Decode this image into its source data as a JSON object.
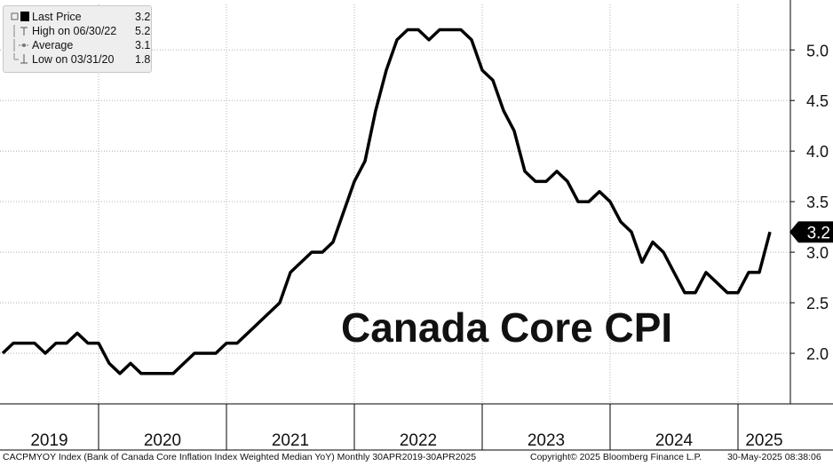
{
  "legend": {
    "last_price": {
      "label": "Last Price",
      "value": "3.2"
    },
    "high": {
      "label": "High on 06/30/22",
      "value": "5.2"
    },
    "average": {
      "label": "Average",
      "value": "3.1"
    },
    "low": {
      "label": "Low on 03/31/20",
      "value": "1.8"
    }
  },
  "annotation_title": "Canada Core CPI",
  "last_value_tag": "3.2",
  "footer": {
    "source": "CACPMYOY Index (Bank of Canada Core Inflation Index Weighted Median YoY)  Monthly 30APR2019-30APR2025",
    "copyright": "Copyright© 2025 Bloomberg Finance L.P.",
    "timestamp": "30-May-2025 08:38:06"
  },
  "colors": {
    "line": "#000000",
    "background": "#ffffff",
    "grid": "#b0b0b0",
    "legend_bg": "#eeeeee"
  },
  "chart_data": {
    "type": "line",
    "title": "Canada Core CPI",
    "xlabel": "",
    "ylabel": "",
    "ylim": [
      1.5,
      5.45
    ],
    "grid": true,
    "legend_placement": "top-left",
    "y_axis_position": "right",
    "y_ticks": [
      "2.0",
      "2.5",
      "3.0",
      "3.5",
      "4.0",
      "4.5",
      "5.0"
    ],
    "year_labels": [
      "2019",
      "2020",
      "2021",
      "2022",
      "2023",
      "2024",
      "2025"
    ],
    "x": [
      "2019-04",
      "2019-05",
      "2019-06",
      "2019-07",
      "2019-08",
      "2019-09",
      "2019-10",
      "2019-11",
      "2019-12",
      "2020-01",
      "2020-02",
      "2020-03",
      "2020-04",
      "2020-05",
      "2020-06",
      "2020-07",
      "2020-08",
      "2020-09",
      "2020-10",
      "2020-11",
      "2020-12",
      "2021-01",
      "2021-02",
      "2021-03",
      "2021-04",
      "2021-05",
      "2021-06",
      "2021-07",
      "2021-08",
      "2021-09",
      "2021-10",
      "2021-11",
      "2021-12",
      "2022-01",
      "2022-02",
      "2022-03",
      "2022-04",
      "2022-05",
      "2022-06",
      "2022-07",
      "2022-08",
      "2022-09",
      "2022-10",
      "2022-11",
      "2022-12",
      "2023-01",
      "2023-02",
      "2023-03",
      "2023-04",
      "2023-05",
      "2023-06",
      "2023-07",
      "2023-08",
      "2023-09",
      "2023-10",
      "2023-11",
      "2023-12",
      "2024-01",
      "2024-02",
      "2024-03",
      "2024-04",
      "2024-05",
      "2024-06",
      "2024-07",
      "2024-08",
      "2024-09",
      "2024-10",
      "2024-11",
      "2024-12",
      "2025-01",
      "2025-02",
      "2025-03",
      "2025-04"
    ],
    "series": [
      {
        "values": [
          2.0,
          2.1,
          2.1,
          2.1,
          2.0,
          2.1,
          2.1,
          2.2,
          2.1,
          2.1,
          1.9,
          1.8,
          1.9,
          1.8,
          1.8,
          1.8,
          1.8,
          1.9,
          2.0,
          2.0,
          2.0,
          2.1,
          2.1,
          2.2,
          2.3,
          2.4,
          2.5,
          2.8,
          2.9,
          3.0,
          3.0,
          3.1,
          3.4,
          3.7,
          3.9,
          4.4,
          4.8,
          5.1,
          5.2,
          5.2,
          5.1,
          5.2,
          5.2,
          5.2,
          5.1,
          4.8,
          4.7,
          4.4,
          4.2,
          3.8,
          3.7,
          3.7,
          3.8,
          3.7,
          3.5,
          3.5,
          3.6,
          3.5,
          3.3,
          3.2,
          2.9,
          3.1,
          3.0,
          2.8,
          2.6,
          2.6,
          2.8,
          2.7,
          2.6,
          2.6,
          2.8,
          2.8,
          3.2
        ]
      }
    ]
  }
}
